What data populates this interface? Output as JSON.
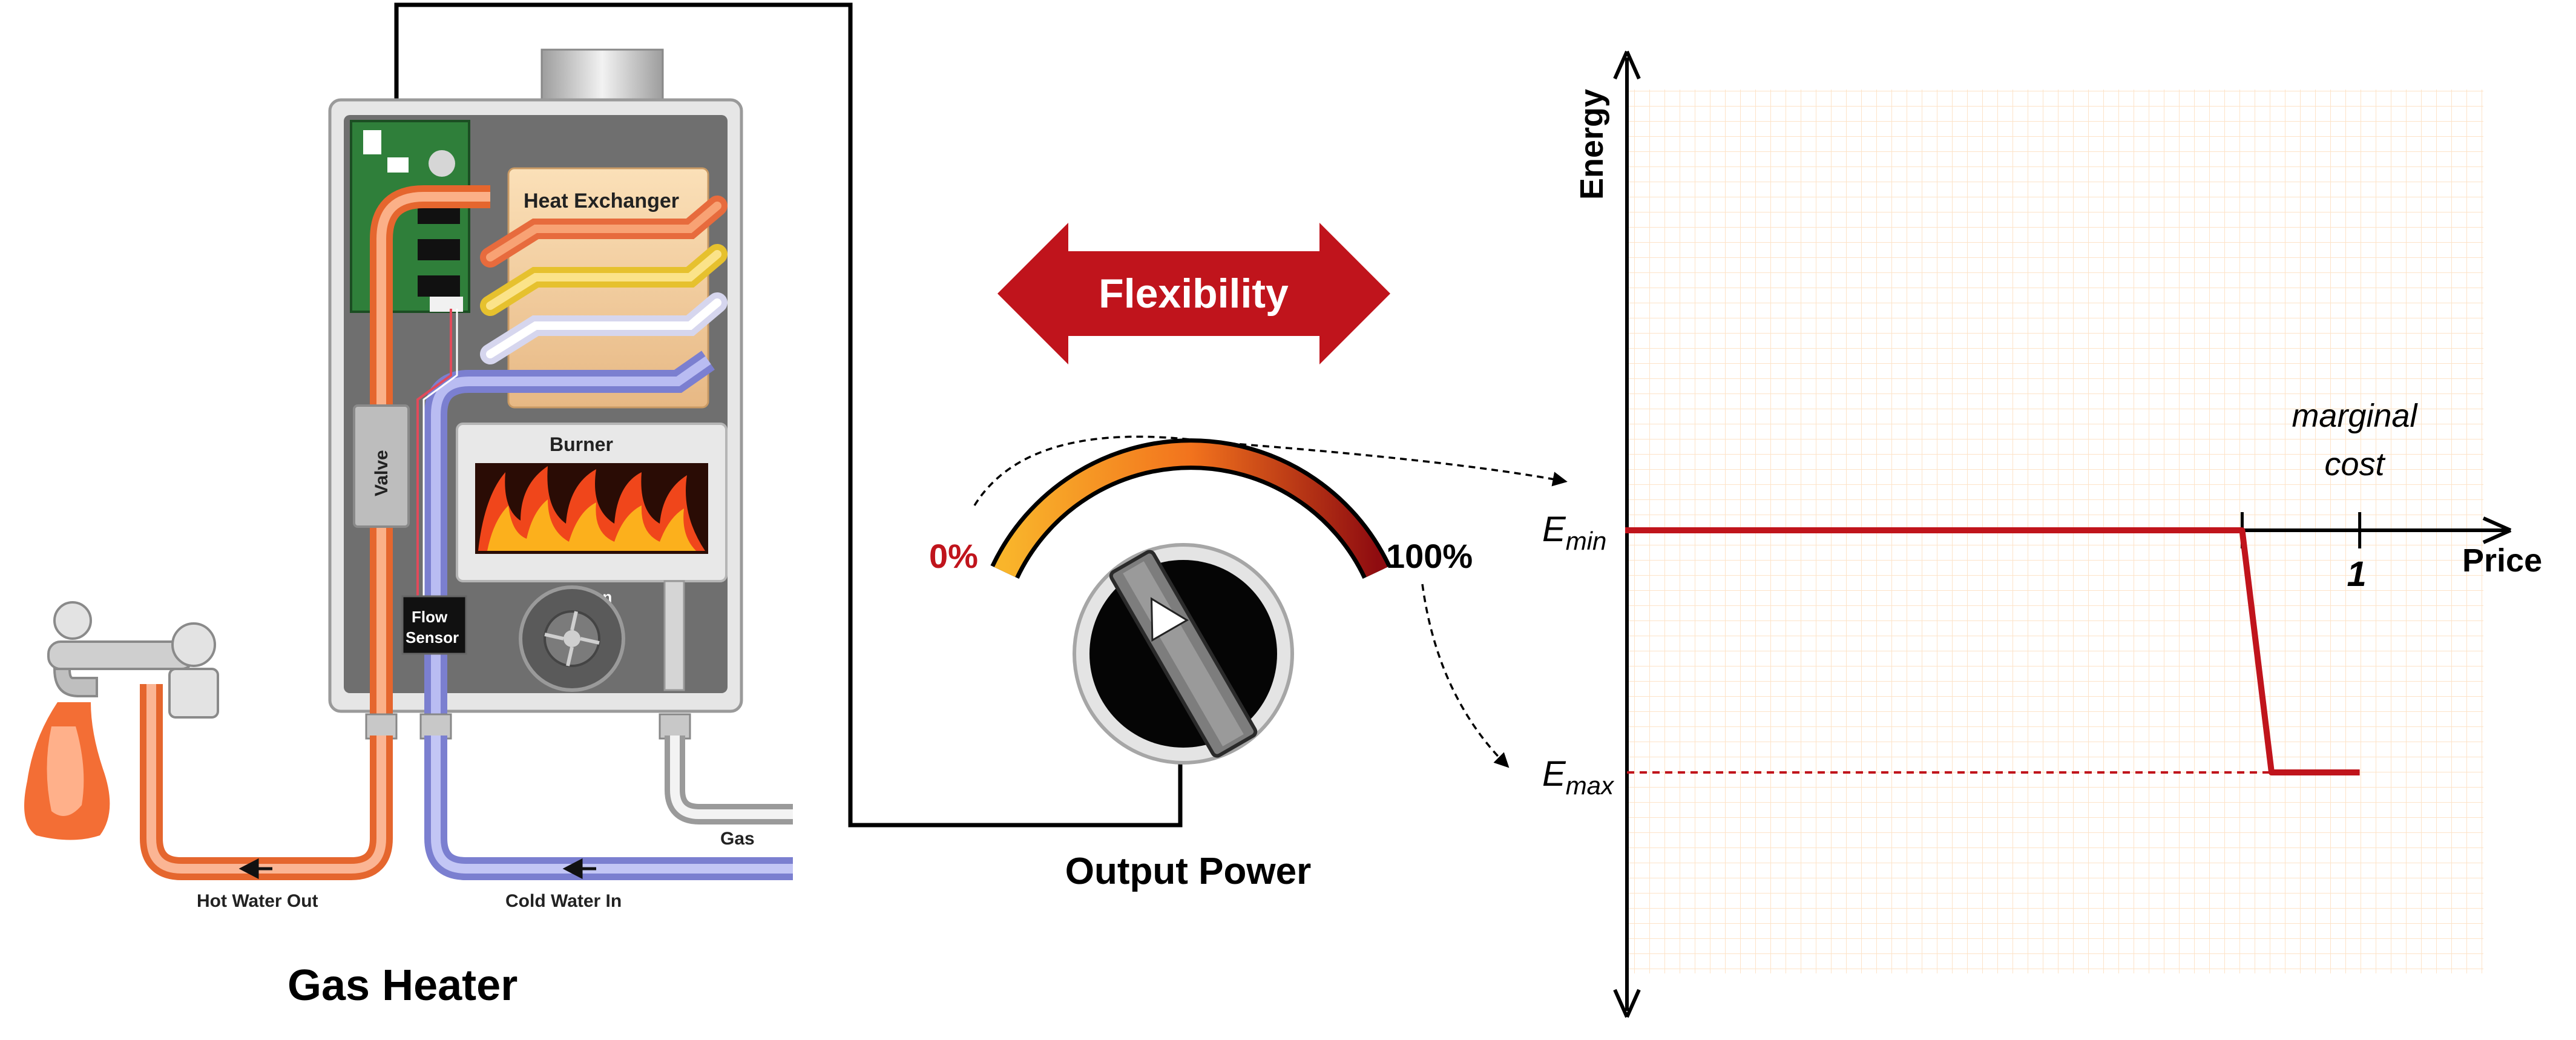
{
  "heater": {
    "title": "Gas Heater",
    "heat_exchanger_label": "Heat Exchanger",
    "burner_label": "Burner",
    "valve_label": "Valve",
    "flow_sensor_line1": "Flow",
    "flow_sensor_line2": "Sensor",
    "fan_label": "Fan",
    "gas_label": "Gas",
    "hot_water_label": "Hot Water Out",
    "cold_water_label": "Cold Water In"
  },
  "flexibility": {
    "label": "Flexibility"
  },
  "dial": {
    "min_label": "0%",
    "max_label": "100%",
    "caption": "Output Power",
    "setting_percent": 50
  },
  "colors": {
    "accent_red": "#c0141c",
    "hot_pipe": "#f58a52",
    "cold_pipe": "#9c9ee6",
    "grid": "#fde3c8",
    "heater_body": "#6f6f6f"
  },
  "chart_data": {
    "type": "line",
    "ylabel": "Energy",
    "xlabel": "Price",
    "x_tick_labels": [
      "1"
    ],
    "annotation": [
      "marginal",
      "cost"
    ],
    "y_labels": {
      "e_min_main": "E",
      "e_min_sub": "min",
      "e_max_main": "E",
      "e_max_sub": "max"
    },
    "series": [
      {
        "x": [
          0,
          0.84,
          0.88,
          1.0
        ],
        "y": [
          0,
          0,
          -1,
          -1
        ]
      }
    ],
    "xlim": [
      0,
      1.1
    ],
    "ylim": [
      -2.0,
      2.0
    ],
    "grid": true,
    "reference_line": {
      "style": "dashed",
      "y": -1
    }
  }
}
